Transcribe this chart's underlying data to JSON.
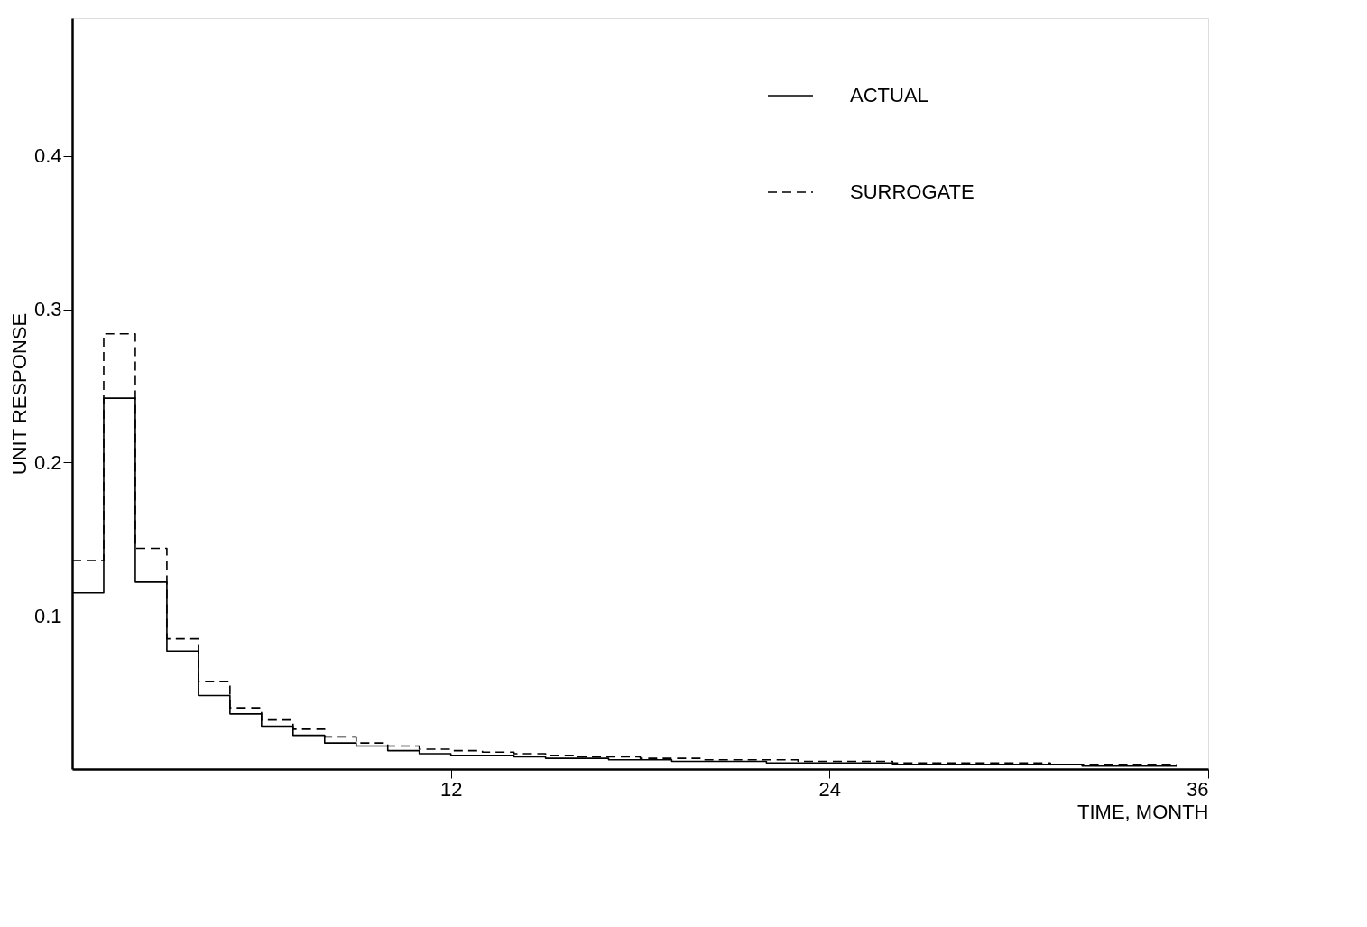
{
  "chart_data": {
    "type": "step",
    "xlabel": "TIME, MONTH",
    "ylabel": "UNIT RESPONSE",
    "x": [
      0,
      1,
      2,
      3,
      4,
      5,
      6,
      7,
      8,
      9,
      10,
      11,
      12,
      13,
      14,
      15,
      16,
      17,
      18,
      19,
      20,
      21,
      22,
      23,
      24,
      25,
      26,
      27,
      28,
      29,
      30,
      31,
      32,
      33,
      34,
      35
    ],
    "series": [
      {
        "name": "ACTUAL",
        "color": "#000000",
        "line_style": "solid",
        "values": [
          0.115,
          0.242,
          0.122,
          0.077,
          0.048,
          0.036,
          0.028,
          0.022,
          0.017,
          0.015,
          0.012,
          0.01,
          0.009,
          0.009,
          0.008,
          0.007,
          0.007,
          0.006,
          0.006,
          0.005,
          0.005,
          0.005,
          0.004,
          0.004,
          0.004,
          0.004,
          0.003,
          0.003,
          0.003,
          0.003,
          0.003,
          0.003,
          0.002,
          0.002,
          0.002,
          0.002
        ]
      },
      {
        "name": "SURROGATE",
        "color": "#000000",
        "line_style": "dashed",
        "values": [
          0.136,
          0.284,
          0.144,
          0.085,
          0.057,
          0.04,
          0.032,
          0.026,
          0.021,
          0.017,
          0.015,
          0.013,
          0.012,
          0.011,
          0.01,
          0.009,
          0.008,
          0.008,
          0.007,
          0.007,
          0.006,
          0.006,
          0.006,
          0.005,
          0.005,
          0.005,
          0.004,
          0.004,
          0.004,
          0.004,
          0.004,
          0.003,
          0.003,
          0.003,
          0.003,
          0.003
        ]
      }
    ],
    "xlim": [
      0,
      36
    ],
    "xticks": [
      12,
      24,
      36
    ],
    "ylim": [
      0,
      0.49
    ],
    "yticks": [
      0.1,
      0.2,
      0.3,
      0.4
    ],
    "grid": false,
    "legend": "top right"
  }
}
